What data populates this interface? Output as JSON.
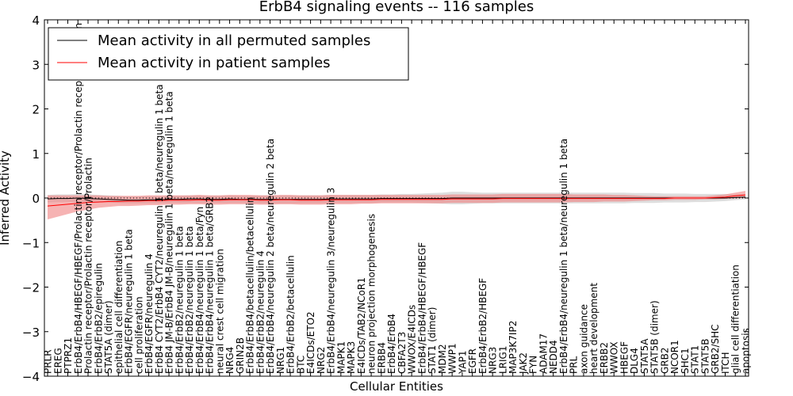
{
  "chart_data": {
    "type": "line",
    "title": "ErbB4 signaling events -- 116 samples",
    "xlabel": "Cellular Entities",
    "ylabel": "Inferred Activity",
    "ylim": [
      -4,
      4
    ],
    "yticks": [
      -4,
      -3,
      -2,
      -1,
      0,
      1,
      2,
      3,
      4
    ],
    "grid": false,
    "legend_position": "top-left",
    "categories": [
      "PRLR",
      "EREG",
      "PTPRZ1",
      "ErbB4/ErbB4/HBEGF/HBEGF/Prolactin receptor/Prolactin receptor/Prolactin",
      "Prolactin receptor/Prolactin receptor/Prolactin",
      "ErbB4/ErbB2/epiregulin",
      "STAT5A (dimer)",
      "epithelial cell differentiation",
      "ErbB4/EGFR/neuregulin 1 beta",
      "cell proliferation",
      "ErbB4/EGFR/neuregulin 4",
      "ErbB4 CYT2/ErbB4 CYT2/neuregulin 1 beta/neuregulin 1 beta",
      "ErbB4 JM-B/ErbB4 JM-B/neuregulin 1 beta/neuregulin 1 beta",
      "ErbB4/ErbB2/neuregulin 1 beta",
      "ErbB4/ErbB2/neuregulin 1 beta",
      "ErbB4/ErbB4/neuregulin 1 beta/Fyn",
      "ErbB4/ErbB4/neuregulin 1 beta/GRB2",
      "neural crest cell migration",
      "NRG4",
      "GRIN2B",
      "ErbB4/ErbB4/betacellulin/betacellulin",
      "ErbB4/ErbB2/neuregulin 4",
      "ErbB4/ErbB4/neuregulin 2 beta/neuregulin 2 beta",
      "NRG1",
      "ErbB4/ErbB2/betacellulin",
      "BTC",
      "E4ICDs/ETO2",
      "NRG2",
      "ErbB4/ErbB4/neuregulin 3/neuregulin 3",
      "MAPK1",
      "MAPK3",
      "E4ICDs/TAB2/NCoR1",
      "neuron projection morphogenesis",
      "ERBB4",
      "ErbB4/ErbB4",
      "CBFA2T3",
      "WWOX/E4ICDs",
      "ErbB4/ErbB4/HBEGF/HBEGF",
      "STAT1 (dimer)",
      "MDM2",
      "WWP1",
      "YAP1",
      "EGFR",
      "ErbB4/ErbB2/HBEGF",
      "NRG3",
      "LRIG1",
      "MAP3K7IP2",
      "JAK2",
      "FYN",
      "ADAM17",
      "NEDD4",
      "ErbB4/ErbB4/neuregulin 1 beta/neuregulin 1 beta",
      "PRL",
      "axon guidance",
      "heart development",
      "ERBB2",
      "WWOX",
      "HBEGF",
      "DLG4",
      "STAT5A",
      "STAT5B (dimer)",
      "GRB2",
      "NCOR1",
      "SHC1",
      "STAT1",
      "STAT5B",
      "GRB2/SHC",
      "ITCH",
      "glial cell differentiation",
      "apoptosis"
    ],
    "series": [
      {
        "name": "Mean activity in all permuted samples",
        "color": "#000000",
        "values": [
          -0.02,
          -0.01,
          -0.01,
          0.0,
          -0.01,
          -0.02,
          -0.03,
          -0.04,
          -0.05,
          -0.05,
          -0.04,
          -0.04,
          -0.03,
          -0.03,
          -0.02,
          -0.02,
          -0.03,
          -0.03,
          -0.02,
          -0.03,
          -0.03,
          -0.03,
          -0.03,
          -0.03,
          -0.03,
          -0.03,
          -0.03,
          -0.03,
          -0.02,
          -0.02,
          -0.02,
          -0.02,
          -0.02,
          -0.01,
          -0.01,
          -0.01,
          -0.01,
          -0.01,
          -0.01,
          -0.01,
          0.0,
          0.0,
          0.0,
          0.0,
          0.0,
          0.0,
          0.0,
          0.0,
          0.0,
          0.0,
          0.0,
          0.0,
          0.0,
          0.0,
          0.0,
          0.0,
          0.0,
          0.0,
          0.0,
          0.0,
          0.0,
          0.0,
          0.0,
          0.0,
          0.0,
          0.0,
          0.0,
          0.0,
          0.01,
          0.02
        ],
        "band_lower": [
          -0.1,
          -0.09,
          -0.09,
          -0.09,
          -0.09,
          -0.1,
          -0.1,
          -0.11,
          -0.12,
          -0.12,
          -0.12,
          -0.12,
          -0.11,
          -0.11,
          -0.11,
          -0.11,
          -0.11,
          -0.11,
          -0.11,
          -0.11,
          -0.11,
          -0.12,
          -0.12,
          -0.12,
          -0.12,
          -0.12,
          -0.12,
          -0.12,
          -0.11,
          -0.11,
          -0.11,
          -0.11,
          -0.11,
          -0.1,
          -0.1,
          -0.1,
          -0.1,
          -0.11,
          -0.12,
          -0.13,
          -0.14,
          -0.14,
          -0.13,
          -0.12,
          -0.12,
          -0.12,
          -0.12,
          -0.12,
          -0.12,
          -0.12,
          -0.12,
          -0.12,
          -0.12,
          -0.12,
          -0.12,
          -0.12,
          -0.12,
          -0.12,
          -0.11,
          -0.11,
          -0.11,
          -0.1,
          -0.1,
          -0.1,
          -0.09,
          -0.09,
          -0.08,
          -0.07,
          -0.05,
          -0.03
        ],
        "band_upper": [
          0.07,
          0.08,
          0.08,
          0.09,
          0.08,
          0.07,
          0.06,
          0.05,
          0.03,
          0.03,
          0.04,
          0.04,
          0.05,
          0.05,
          0.06,
          0.06,
          0.05,
          0.05,
          0.06,
          0.05,
          0.05,
          0.06,
          0.06,
          0.06,
          0.06,
          0.06,
          0.06,
          0.06,
          0.07,
          0.07,
          0.07,
          0.07,
          0.07,
          0.08,
          0.08,
          0.09,
          0.09,
          0.1,
          0.11,
          0.12,
          0.14,
          0.14,
          0.13,
          0.12,
          0.12,
          0.12,
          0.12,
          0.12,
          0.12,
          0.12,
          0.12,
          0.12,
          0.12,
          0.12,
          0.12,
          0.12,
          0.12,
          0.12,
          0.11,
          0.11,
          0.11,
          0.1,
          0.1,
          0.1,
          0.09,
          0.09,
          0.09,
          0.09,
          0.08,
          0.08
        ]
      },
      {
        "name": "Mean activity in patient samples",
        "color": "#ff0000",
        "values": [
          -0.18,
          -0.16,
          -0.14,
          -0.12,
          -0.1,
          -0.09,
          -0.08,
          -0.08,
          -0.07,
          -0.07,
          -0.06,
          -0.06,
          -0.05,
          -0.05,
          -0.05,
          -0.04,
          -0.05,
          -0.05,
          -0.04,
          -0.04,
          -0.04,
          -0.05,
          -0.05,
          -0.04,
          -0.04,
          -0.05,
          -0.05,
          -0.05,
          -0.04,
          -0.04,
          -0.04,
          -0.04,
          -0.04,
          -0.03,
          -0.03,
          -0.03,
          -0.03,
          -0.03,
          -0.03,
          -0.03,
          -0.02,
          -0.02,
          -0.02,
          -0.02,
          -0.02,
          -0.01,
          -0.01,
          -0.01,
          -0.01,
          -0.01,
          -0.01,
          -0.01,
          -0.01,
          -0.01,
          -0.01,
          -0.01,
          -0.01,
          -0.01,
          -0.01,
          -0.01,
          -0.01,
          -0.01,
          0.0,
          0.0,
          0.0,
          0.0,
          0.01,
          0.02,
          0.05,
          0.07
        ],
        "band_lower": [
          -0.48,
          -0.42,
          -0.36,
          -0.3,
          -0.26,
          -0.22,
          -0.2,
          -0.18,
          -0.18,
          -0.17,
          -0.16,
          -0.16,
          -0.15,
          -0.15,
          -0.14,
          -0.14,
          -0.15,
          -0.15,
          -0.14,
          -0.14,
          -0.14,
          -0.15,
          -0.15,
          -0.14,
          -0.14,
          -0.15,
          -0.15,
          -0.15,
          -0.14,
          -0.14,
          -0.14,
          -0.13,
          -0.13,
          -0.12,
          -0.12,
          -0.12,
          -0.12,
          -0.12,
          -0.12,
          -0.12,
          -0.11,
          -0.11,
          -0.11,
          -0.11,
          -0.11,
          -0.1,
          -0.1,
          -0.1,
          -0.1,
          -0.1,
          -0.1,
          -0.1,
          -0.09,
          -0.09,
          -0.09,
          -0.08,
          -0.08,
          -0.08,
          -0.07,
          -0.06,
          -0.05,
          -0.05,
          -0.04,
          -0.04,
          -0.04,
          -0.03,
          -0.03,
          -0.02,
          -0.01,
          0.0
        ],
        "band_upper": [
          0.06,
          0.06,
          0.06,
          0.06,
          0.06,
          0.06,
          0.05,
          0.05,
          0.05,
          0.05,
          0.06,
          0.06,
          0.06,
          0.06,
          0.06,
          0.07,
          0.06,
          0.06,
          0.07,
          0.07,
          0.07,
          0.06,
          0.06,
          0.07,
          0.07,
          0.06,
          0.06,
          0.06,
          0.07,
          0.07,
          0.07,
          0.07,
          0.07,
          0.07,
          0.07,
          0.07,
          0.07,
          0.07,
          0.07,
          0.07,
          0.08,
          0.08,
          0.08,
          0.08,
          0.08,
          0.09,
          0.09,
          0.09,
          0.09,
          0.09,
          0.09,
          0.09,
          0.08,
          0.08,
          0.08,
          0.08,
          0.07,
          0.07,
          0.06,
          0.05,
          0.04,
          0.04,
          0.04,
          0.04,
          0.04,
          0.04,
          0.06,
          0.08,
          0.12,
          0.16
        ]
      }
    ],
    "baseline": {
      "value": 0,
      "style": "dotted",
      "color": "#000000"
    },
    "band_colors": {
      "permuted": "#c8c8c8",
      "patient": "#f08080"
    }
  }
}
